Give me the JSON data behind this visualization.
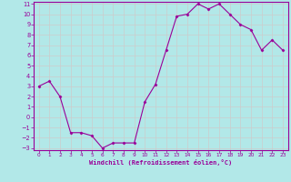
{
  "x": [
    0,
    1,
    2,
    3,
    4,
    5,
    6,
    7,
    8,
    9,
    10,
    11,
    12,
    13,
    14,
    15,
    16,
    17,
    18,
    19,
    20,
    21,
    22,
    23
  ],
  "y": [
    3,
    3.5,
    2,
    -1.5,
    -1.5,
    -1.8,
    -3,
    -2.5,
    -2.5,
    -2.5,
    1.5,
    3.2,
    6.5,
    9.8,
    10,
    11,
    10.5,
    11,
    10,
    9,
    8.5,
    6.5,
    7.5,
    6.5
  ],
  "line_color": "#990099",
  "marker": "D",
  "marker_size": 1.5,
  "bg_color": "#b2e8e8",
  "grid_color": "#cccccc",
  "xlabel": "Windchill (Refroidissement éolien,°C)",
  "xlabel_color": "#990099",
  "tick_color": "#990099",
  "ylim": [
    -3,
    11
  ],
  "xlim": [
    -0.5,
    23.5
  ],
  "yticks": [
    -3,
    -2,
    -1,
    0,
    1,
    2,
    3,
    4,
    5,
    6,
    7,
    8,
    9,
    10,
    11
  ],
  "xticks": [
    0,
    1,
    2,
    3,
    4,
    5,
    6,
    7,
    8,
    9,
    10,
    11,
    12,
    13,
    14,
    15,
    16,
    17,
    18,
    19,
    20,
    21,
    22,
    23
  ],
  "title_color": "#990099",
  "spine_color": "#990099"
}
